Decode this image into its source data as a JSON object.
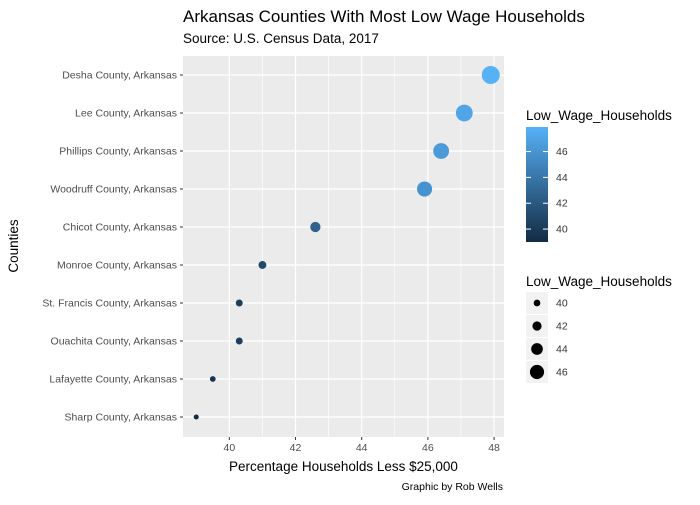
{
  "chart_data": {
    "type": "scatter",
    "title": "Arkansas Counties With Most Low Wage Households",
    "subtitle": "Source: U.S. Census Data, 2017",
    "xlabel": "Percentage Households Less $25,000",
    "ylabel": "Counties",
    "caption": "Graphic by Rob Wells",
    "xlim": [
      38.6,
      48.3
    ],
    "x_ticks": [
      40,
      42,
      44,
      46,
      48
    ],
    "grid": true,
    "points": [
      {
        "county": "Desha County, Arkansas",
        "x": 47.9
      },
      {
        "county": "Lee County, Arkansas",
        "x": 47.1
      },
      {
        "county": "Phillips County, Arkansas",
        "x": 46.4
      },
      {
        "county": "Woodruff County, Arkansas",
        "x": 45.9
      },
      {
        "county": "Chicot County, Arkansas",
        "x": 42.6
      },
      {
        "county": "Monroe County, Arkansas",
        "x": 41.0
      },
      {
        "county": "St. Francis County, Arkansas",
        "x": 40.3
      },
      {
        "county": "Ouachita County, Arkansas",
        "x": 40.3
      },
      {
        "county": "Lafayette County, Arkansas",
        "x": 39.5
      },
      {
        "county": "Sharp County, Arkansas",
        "x": 39.0
      }
    ],
    "color_legend": {
      "title": "Low_Wage_Households",
      "ticks": [
        40,
        42,
        44,
        46
      ],
      "range": [
        39.0,
        47.9
      ],
      "low_color": "#132B43",
      "high_color": "#56B1F7"
    },
    "size_legend": {
      "title": "Low_Wage_Households",
      "values": [
        40,
        42,
        44,
        46
      ]
    },
    "colors": {
      "panel": "#EBEBEB",
      "grid_major": "#FFFFFF",
      "text": "#000000",
      "tick_text": "#4D4D4D"
    }
  }
}
